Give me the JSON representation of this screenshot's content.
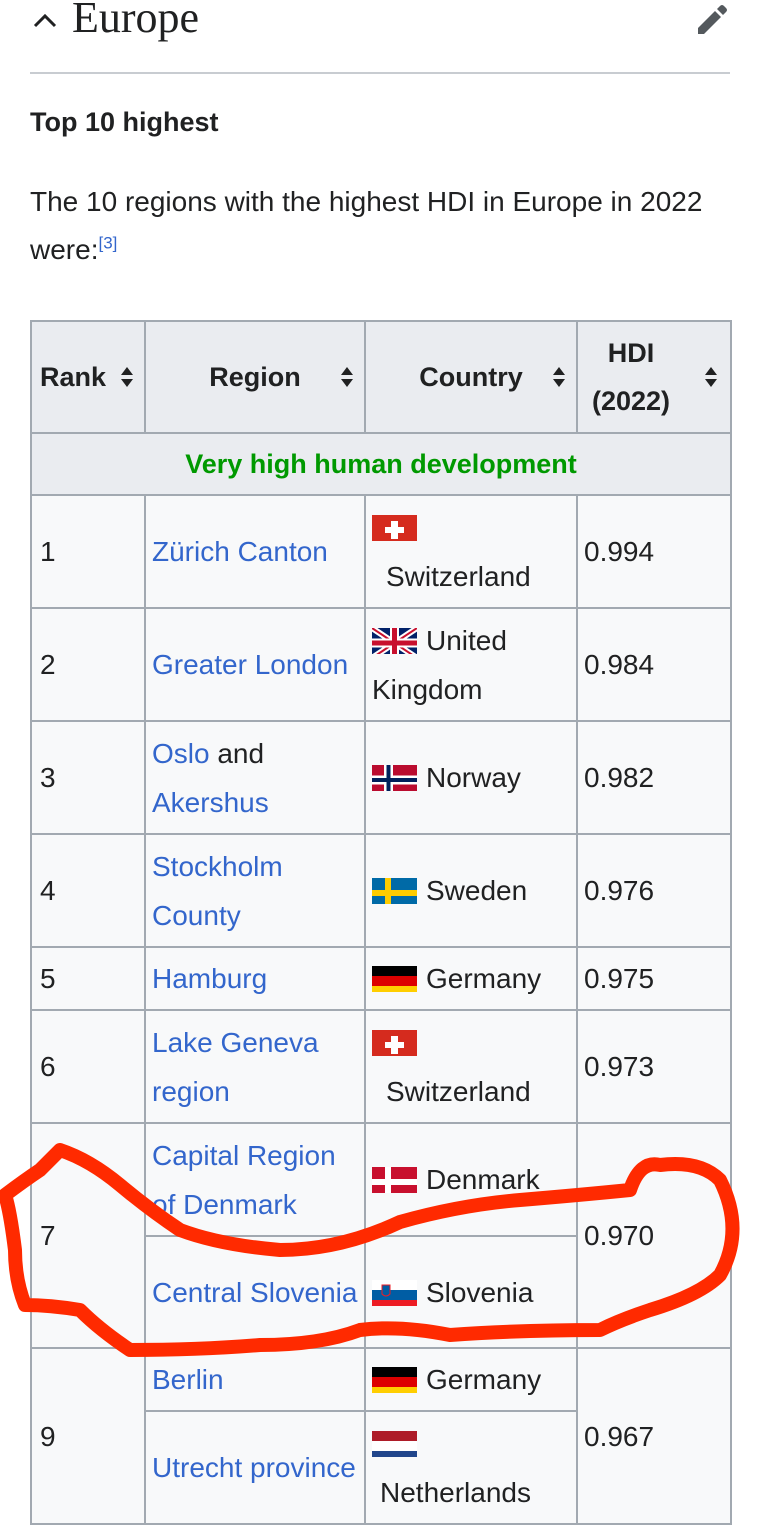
{
  "section": {
    "title": "Europe"
  },
  "subheading": "Top 10 highest",
  "intro": {
    "text": "The 10 regions with the highest HDI in Europe in 2022 were:",
    "ref": "[3]"
  },
  "table": {
    "headers": {
      "rank": "Rank",
      "region": "Region",
      "country": "Country",
      "hdi_line1": "HDI",
      "hdi_line2": "(2022)"
    },
    "group_label": "Very high human development",
    "rows": [
      {
        "rank": "1",
        "region": "Zürich Canton",
        "country": "Switzerland",
        "hdi": "0.994"
      },
      {
        "rank": "2",
        "region": "Greater London",
        "country_flag_text": "United",
        "country_rest": "Kingdom",
        "hdi": "0.984"
      },
      {
        "rank": "3",
        "region_link1": "Oslo",
        "region_and": "and",
        "region_link2": "Akershus",
        "country": "Norway",
        "hdi": "0.982"
      },
      {
        "rank": "4",
        "region": "Stockholm County",
        "country": "Sweden",
        "hdi": "0.976"
      },
      {
        "rank": "5",
        "region": "Hamburg",
        "country": "Germany",
        "hdi": "0.975"
      },
      {
        "rank": "6",
        "region": "Lake Geneva region",
        "country": "Switzerland",
        "hdi": "0.973"
      },
      {
        "rank": "7",
        "region": "Capital Region of Denmark",
        "country": "Denmark",
        "hdi": "0.970"
      },
      {
        "region": "Central Slovenia",
        "country": "Slovenia"
      },
      {
        "rank": "9",
        "region": "Berlin",
        "country": "Germany",
        "hdi": "0.967"
      },
      {
        "region": "Utrecht province",
        "country": "Netherlands"
      }
    ]
  },
  "annotation": {
    "color": "#ff2a00"
  }
}
